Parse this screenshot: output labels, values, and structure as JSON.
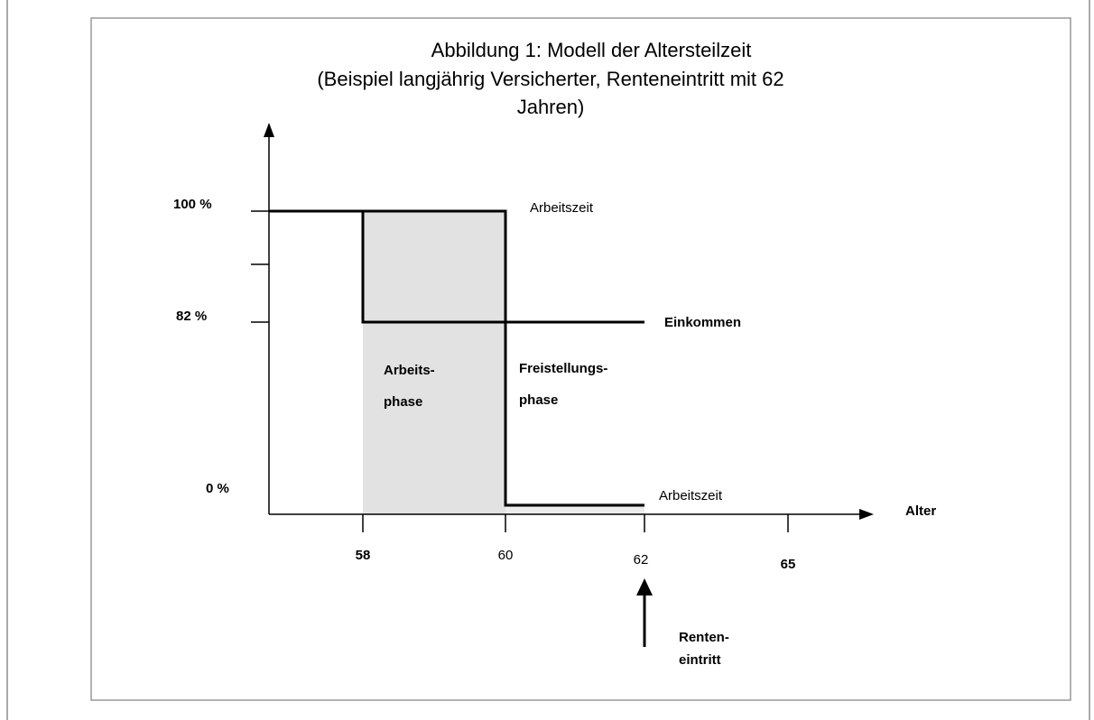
{
  "title": {
    "lines": [
      "Abbildung 1: Modell der Altersteilzeit",
      "(Beispiel langjährig Versicherter, Renteneintritt mit 62",
      "Jahren)"
    ]
  },
  "y_labels": [
    "100 %",
    "82 %",
    "0 %"
  ],
  "x_labels": [
    "58",
    "60",
    "62",
    "65"
  ],
  "x_axis_label": "Alter",
  "annotations": {
    "arbeitszeit_top": "Arbeitszeit",
    "einkommen": "Einkommen",
    "arbeitsphase": [
      "Arbeits-",
      "phase"
    ],
    "freistellungsphase": [
      "Freistellungs-",
      "phase"
    ],
    "arbeitszeit_bottom": "Arbeitszeit",
    "renteneintritt": [
      "Renten-",
      "eintritt"
    ]
  }
}
